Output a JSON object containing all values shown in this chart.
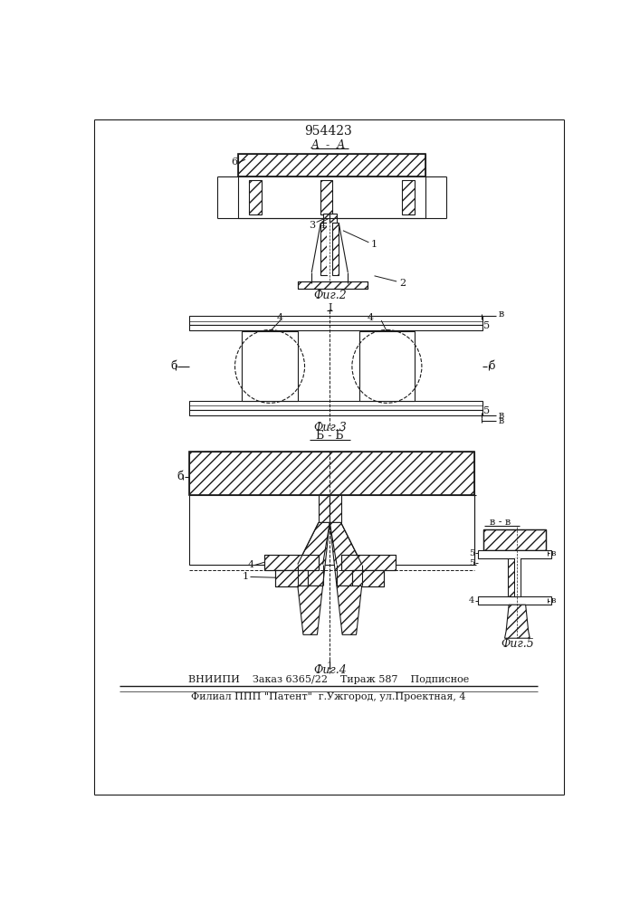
{
  "title": "954423",
  "bg": "#ffffff",
  "lc": "#1a1a1a",
  "fig2_label": "Фиг.2",
  "fig3_label": "Фиг.3",
  "fig3_sub": "Б - Б",
  "fig4_label": "Фиг.4",
  "fig5_label": "Фиг.5",
  "footer1": "ВНИИПИ    Заказ 6365/22    Тираж 587    Подписное",
  "footer2": "Филиал ППП \"Патент\"  г.Ужгород, ул.Проектная, 4"
}
